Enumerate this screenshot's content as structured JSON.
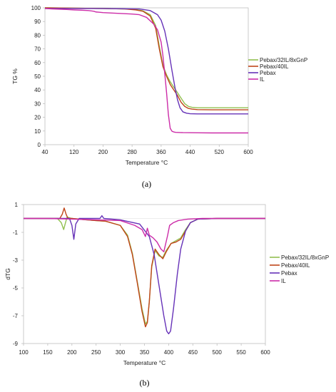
{
  "chart_data": [
    {
      "type": "line",
      "title": "",
      "xlabel": "Temperature °C",
      "ylabel": "TG %",
      "xlim": [
        40,
        600
      ],
      "ylim": [
        0,
        100
      ],
      "xticks": [
        40,
        120,
        200,
        280,
        360,
        440,
        520,
        600
      ],
      "yticks": [
        0,
        10,
        20,
        30,
        40,
        50,
        60,
        70,
        80,
        90,
        100
      ],
      "grid": false,
      "legend": "right",
      "caption": "(a)",
      "series": [
        {
          "name": "Pebax/32IL/8xGnP",
          "color": "#92c050",
          "x": [
            40,
            100,
            200,
            260,
            290,
            310,
            330,
            345,
            355,
            365,
            375,
            385,
            395,
            405,
            415,
            425,
            435,
            445,
            460,
            500,
            550,
            600
          ],
          "y": [
            100,
            99.8,
            99.5,
            99.2,
            98.8,
            97.8,
            95,
            87,
            72,
            58,
            51,
            46,
            42,
            38,
            34,
            30,
            28,
            27.3,
            27,
            27,
            27,
            27
          ]
        },
        {
          "name": "Pebax/40IL",
          "color": "#c0461a",
          "x": [
            40,
            100,
            200,
            260,
            290,
            310,
            330,
            345,
            355,
            365,
            375,
            385,
            395,
            405,
            415,
            425,
            435,
            445,
            460,
            500,
            550,
            600
          ],
          "y": [
            100,
            99.8,
            99.5,
            99.2,
            98.5,
            97.5,
            94,
            85,
            70,
            57,
            50,
            44,
            40,
            36,
            31,
            28,
            26.5,
            26,
            25.6,
            25.5,
            25.5,
            25.5
          ]
        },
        {
          "name": "Pebax",
          "color": "#6632b8",
          "x": [
            40,
            100,
            200,
            300,
            330,
            350,
            360,
            370,
            380,
            390,
            398,
            405,
            412,
            420,
            430,
            440,
            460,
            500,
            550,
            600
          ],
          "y": [
            99.5,
            99.5,
            99.5,
            99.2,
            98,
            95,
            91,
            83,
            70,
            54,
            42,
            33,
            27,
            24,
            23,
            22.6,
            22.5,
            22.5,
            22.5,
            22.5
          ]
        },
        {
          "name": "IL",
          "color": "#cc2ca8",
          "x": [
            40,
            60,
            80,
            100,
            120,
            140,
            160,
            175,
            180,
            190,
            200,
            240,
            280,
            300,
            320,
            340,
            350,
            360,
            365,
            370,
            375,
            380,
            385,
            390,
            395,
            400,
            420,
            460,
            500,
            550,
            600
          ],
          "y": [
            99.5,
            99.2,
            99,
            98.8,
            98.5,
            98.3,
            98,
            97.5,
            97,
            96.8,
            96.5,
            96,
            95.5,
            95,
            93,
            88,
            84,
            75,
            65,
            52,
            38,
            22,
            12,
            9.8,
            9.3,
            9,
            8.8,
            8.7,
            8.6,
            8.6,
            8.6
          ]
        }
      ]
    },
    {
      "type": "line",
      "title": "",
      "xlabel": "Temperature °C",
      "ylabel": "dTG",
      "xlim": [
        100,
        600
      ],
      "ylim": [
        -9,
        1
      ],
      "xticks": [
        100,
        150,
        200,
        250,
        300,
        350,
        400,
        450,
        500,
        550,
        600
      ],
      "yticks": [
        1,
        -1,
        -3,
        -5,
        -7,
        -9
      ],
      "grid": false,
      "legend": "right",
      "caption": "(b)",
      "series": [
        {
          "name": "Pebax/32IL/8xGnP",
          "color": "#92c050",
          "x": [
            100,
            170,
            178,
            183,
            186,
            190,
            200,
            230,
            270,
            300,
            315,
            325,
            335,
            345,
            352,
            356,
            360,
            365,
            372,
            380,
            388,
            395,
            405,
            415,
            425,
            435,
            445,
            460,
            500,
            600
          ],
          "y": [
            0,
            0,
            -0.3,
            -0.8,
            -0.4,
            0.1,
            0,
            -0.1,
            -0.2,
            -0.5,
            -1.2,
            -2.5,
            -4.5,
            -6.5,
            -7.6,
            -7.4,
            -6,
            -3.5,
            -2.3,
            -2.7,
            -2.8,
            -2.3,
            -1.8,
            -1.6,
            -1.4,
            -0.8,
            -0.3,
            -0.05,
            0,
            0
          ]
        },
        {
          "name": "Pebax/40IL",
          "color": "#c0461a",
          "x": [
            100,
            175,
            180,
            184,
            188,
            192,
            200,
            230,
            270,
            300,
            315,
            325,
            335,
            345,
            352,
            356,
            360,
            365,
            372,
            380,
            388,
            395,
            405,
            415,
            425,
            435,
            445,
            460,
            500,
            600
          ],
          "y": [
            0,
            0,
            0.3,
            0.75,
            0.3,
            0,
            0,
            -0.1,
            -0.2,
            -0.5,
            -1.3,
            -2.6,
            -4.6,
            -6.7,
            -7.8,
            -7.5,
            -6,
            -3.4,
            -2.2,
            -2.6,
            -2.9,
            -2.4,
            -1.8,
            -1.7,
            -1.5,
            -0.9,
            -0.3,
            -0.05,
            0,
            0
          ]
        },
        {
          "name": "Pebax",
          "color": "#6632b8",
          "x": [
            100,
            195,
            200,
            204,
            208,
            215,
            250,
            258,
            262,
            266,
            300,
            340,
            360,
            370,
            380,
            390,
            396,
            400,
            404,
            410,
            418,
            425,
            435,
            445,
            460,
            500,
            600
          ],
          "y": [
            0,
            0,
            -0.5,
            -1.5,
            -0.4,
            0,
            0,
            0,
            0.2,
            0,
            -0.1,
            -0.4,
            -1.3,
            -2.6,
            -4.8,
            -7,
            -8.1,
            -8.3,
            -8.1,
            -6.5,
            -4,
            -2.2,
            -0.9,
            -0.3,
            -0.05,
            0,
            0
          ]
        },
        {
          "name": "IL",
          "color": "#cc2ca8",
          "x": [
            100,
            150,
            200,
            250,
            300,
            330,
            345,
            352,
            356,
            360,
            368,
            376,
            384,
            390,
            394,
            398,
            402,
            410,
            420,
            440,
            470,
            520,
            600
          ],
          "y": [
            0,
            0,
            -0.05,
            -0.1,
            -0.15,
            -0.5,
            -0.8,
            -1.3,
            -0.7,
            -1.2,
            -1.4,
            -1.7,
            -2.2,
            -2.4,
            -1.8,
            -1.2,
            -0.5,
            -0.3,
            -0.15,
            -0.05,
            0,
            0,
            0
          ]
        }
      ]
    }
  ]
}
